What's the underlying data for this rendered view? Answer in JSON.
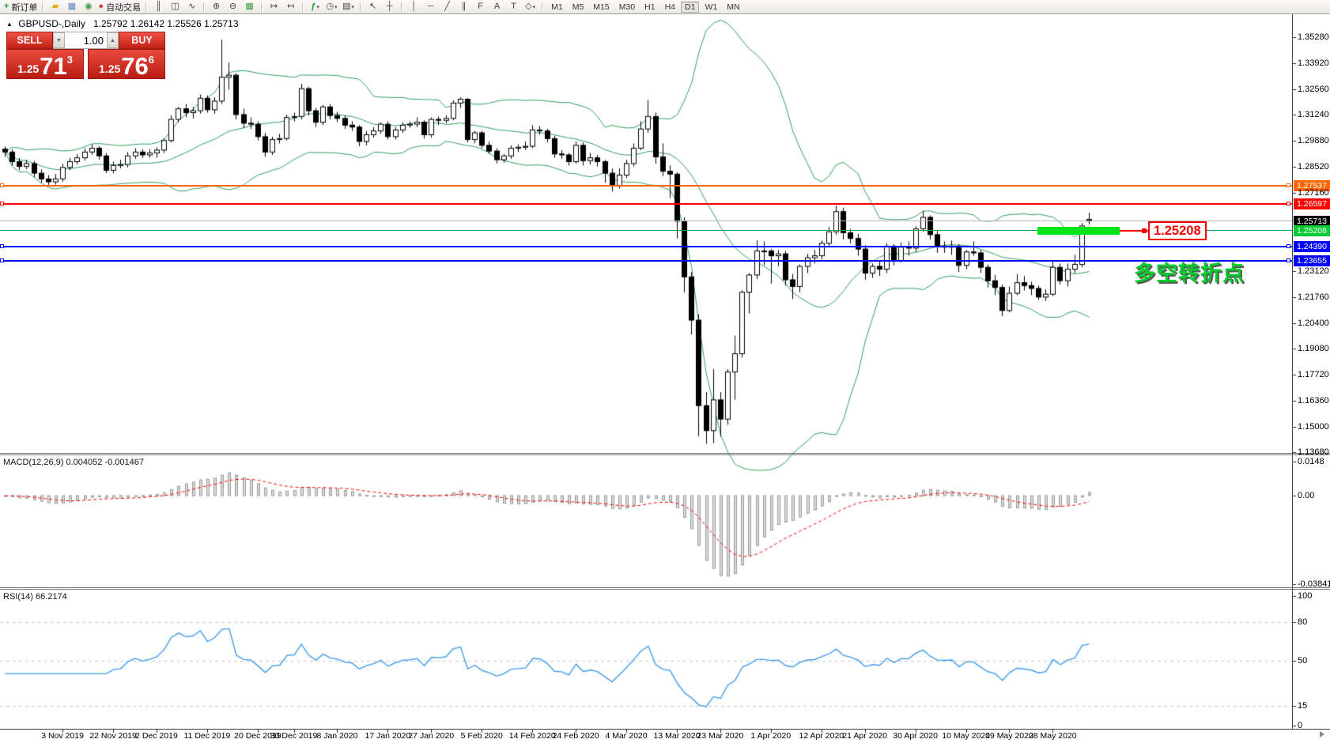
{
  "toolbar": {
    "buttons": [
      {
        "name": "new-order",
        "glyph": "+",
        "color": "#1d9f3c",
        "bold": true,
        "label": "新订单"
      },
      {
        "sep": true
      },
      {
        "name": "highlighter",
        "glyph": "▰",
        "color": "#e0a800"
      },
      {
        "name": "profiles",
        "glyph": "▦",
        "color": "#5a86c5"
      },
      {
        "name": "market-watch",
        "glyph": "◉",
        "color": "#3f9d47"
      },
      {
        "name": "autotrade",
        "glyph": "●",
        "color": "#cf4040",
        "label": "自动交易"
      },
      {
        "sep": true
      },
      {
        "name": "bar-chart",
        "glyph": "║"
      },
      {
        "name": "candlestick-chart",
        "glyph": "◫"
      },
      {
        "name": "line-chart",
        "glyph": "∿"
      },
      {
        "sep": true
      },
      {
        "name": "zoom-in",
        "glyph": "⊕"
      },
      {
        "name": "zoom-out",
        "glyph": "⊖"
      },
      {
        "name": "tile-windows",
        "glyph": "▦",
        "color": "#3f9d47"
      },
      {
        "sep": true
      },
      {
        "name": "auto-scroll",
        "glyph": "↦"
      },
      {
        "name": "chart-shift",
        "glyph": "↤"
      },
      {
        "sep": true
      },
      {
        "name": "indicators-add",
        "glyph": "ƒ",
        "color": "#1d9f3c",
        "bold": true,
        "caret": true
      },
      {
        "name": "periods",
        "glyph": "◷",
        "caret": true
      },
      {
        "name": "templates",
        "glyph": "▤",
        "caret": true
      },
      {
        "sep": true
      },
      {
        "name": "cursor",
        "glyph": "↖"
      },
      {
        "name": "crosshair",
        "glyph": "┼"
      },
      {
        "sep": true
      },
      {
        "name": "vertical-line",
        "glyph": "│"
      },
      {
        "name": "horizontal-line",
        "glyph": "─"
      },
      {
        "name": "trendline",
        "glyph": "╱"
      },
      {
        "name": "equidistant-channel",
        "glyph": "∥"
      },
      {
        "name": "fibonacci",
        "glyph": "F"
      },
      {
        "name": "text",
        "glyph": "A"
      },
      {
        "name": "text-label",
        "glyph": "T"
      },
      {
        "name": "arrows",
        "glyph": "◇",
        "caret": true
      },
      {
        "sep": true
      }
    ],
    "timeframes": [
      "M1",
      "M5",
      "M15",
      "M30",
      "H1",
      "H4",
      "D1",
      "W1",
      "MN"
    ],
    "active_timeframe": "D1"
  },
  "chart_header": {
    "symbol_period": "GBPUSD-,Daily",
    "ohlc": "1.25792 1.26142 1.25526 1.25713"
  },
  "one_click": {
    "sell_label": "SELL",
    "buy_label": "BUY",
    "volume": "1.00",
    "sell_small": "1.25",
    "sell_big": "71",
    "sell_sup": "3",
    "buy_small": "1.25",
    "buy_big": "76",
    "buy_sup": "6"
  },
  "price_axis": {
    "ticks": [
      "1.35280",
      "1.33920",
      "1.32560",
      "1.31240",
      "1.29880",
      "1.28520",
      "1.27160",
      "1.23120",
      "1.21760",
      "1.20400",
      "1.19080",
      "1.17720",
      "1.16360",
      "1.15000",
      "1.13680"
    ]
  },
  "levels": [
    {
      "name": "resistance-line-1",
      "price": "1.27537",
      "value": 1.27537,
      "color": "#ff6600",
      "thickness": 2,
      "handles": true
    },
    {
      "name": "resistance-line-2",
      "price": "1.26597",
      "value": 1.26597,
      "color": "#fe0000",
      "thickness": 2,
      "handles": true
    },
    {
      "name": "bid-price-line",
      "price": "1.25713",
      "value": 1.25713,
      "color": "#b8b8b8",
      "thickness": 1,
      "tag_bg": "#000000"
    },
    {
      "name": "pivot-line",
      "price": "1.25208",
      "value": 1.25208,
      "color": "#00a74a",
      "thickness": 1,
      "tag_bg": "#00cc33"
    },
    {
      "name": "support-line-1",
      "price": "1.24390",
      "value": 1.2439,
      "color": "#0000fe",
      "thickness": 2,
      "handles": true
    },
    {
      "name": "support-line-2",
      "price": "1.23655",
      "value": 1.23655,
      "color": "#0000fe",
      "thickness": 2,
      "handles": true
    }
  ],
  "annotations": {
    "highlight_bar": {
      "price": 1.25208,
      "color": "#00e619"
    },
    "callout": {
      "text": "1.25208",
      "color": "#f40000"
    },
    "cn_note": {
      "text": "多空转折点",
      "color": "#00cc2a"
    }
  },
  "macd_panel": {
    "label": "MACD(12,26,9) 0.004052 -0.001467",
    "axis_max": "0.0148",
    "axis_zero": "0.00",
    "axis_min": "-0.038415"
  },
  "rsi_panel": {
    "label": "RSI(14) 66.2174",
    "axis": [
      "100",
      "80",
      "50",
      "15",
      "0"
    ],
    "level_lines": [
      80,
      50,
      15
    ]
  },
  "date_axis": [
    {
      "label": "3 Nov 2019",
      "i": 8
    },
    {
      "label": "22 Nov 2019",
      "i": 15
    },
    {
      "label": "2 Dec 2019",
      "i": 21
    },
    {
      "label": "11 Dec 2019",
      "i": 28
    },
    {
      "label": "20 Dec 2019",
      "i": 35
    },
    {
      "label": "30 Dec 2019",
      "i": 40
    },
    {
      "label": "8 Jan 2020",
      "i": 46
    },
    {
      "label": "17 Jan 2020",
      "i": 53
    },
    {
      "label": "27 Jan 2020",
      "i": 59
    },
    {
      "label": "5 Feb 2020",
      "i": 66
    },
    {
      "label": "14 Feb 2020",
      "i": 73
    },
    {
      "label": "24 Feb 2020",
      "i": 79
    },
    {
      "label": "4 Mar 2020",
      "i": 86
    },
    {
      "label": "13 Mar 2020",
      "i": 93
    },
    {
      "label": "23 Mar 2020",
      "i": 99
    },
    {
      "label": "1 Apr 2020",
      "i": 106
    },
    {
      "label": "12 Apr 2020",
      "i": 113
    },
    {
      "label": "21 Apr 2020",
      "i": 119
    },
    {
      "label": "30 Apr 2020",
      "i": 126
    },
    {
      "label": "10 May 2020",
      "i": 133
    },
    {
      "label": "19 May 2020",
      "i": 139
    },
    {
      "label": "28 May 2020",
      "i": 145
    }
  ],
  "chart_data": {
    "type": "candlestick",
    "symbol": "GBPUSD-",
    "timeframe": "Daily",
    "ohlc_display": {
      "open": "1.25792",
      "high": "1.26142",
      "low": "1.25526",
      "close": "1.25713"
    },
    "visible_price_range": [
      1.1368,
      1.356
    ],
    "overlays": [
      {
        "name": "Bollinger Bands",
        "period": 20,
        "deviation": 2,
        "color": "#2e9e5b"
      }
    ],
    "indicators": [
      {
        "name": "MACD",
        "params": [
          12,
          26,
          9
        ],
        "current": [
          0.004052,
          -0.001467
        ],
        "range": [
          -0.038415,
          0.0148
        ]
      },
      {
        "name": "RSI",
        "params": [
          14
        ],
        "current": 66.2174,
        "levels": [
          15,
          50,
          80
        ],
        "range": [
          0,
          100
        ]
      }
    ],
    "horizontal_levels": [
      1.27537,
      1.26597,
      1.25713,
      1.25208,
      1.2439,
      1.23655
    ],
    "candles": [
      [
        1.2945,
        1.296,
        1.2905,
        1.293
      ],
      [
        1.293,
        1.2945,
        1.286,
        1.288
      ],
      [
        1.288,
        1.29,
        1.2835,
        1.2855
      ],
      [
        1.2855,
        1.289,
        1.284,
        1.287
      ],
      [
        1.287,
        1.2885,
        1.28,
        1.282
      ],
      [
        1.282,
        1.284,
        1.277,
        1.279
      ],
      [
        1.279,
        1.281,
        1.275,
        1.2775
      ],
      [
        1.2775,
        1.2815,
        1.276,
        1.279
      ],
      [
        1.279,
        1.287,
        1.2775,
        1.285
      ],
      [
        1.285,
        1.29,
        1.2835,
        1.288
      ],
      [
        1.288,
        1.292,
        1.2865,
        1.29
      ],
      [
        1.29,
        1.295,
        1.2885,
        1.293
      ],
      [
        1.293,
        1.297,
        1.2915,
        1.295
      ],
      [
        1.295,
        1.296,
        1.289,
        1.291
      ],
      [
        1.291,
        1.2925,
        1.282,
        1.2835
      ],
      [
        1.2835,
        1.288,
        1.282,
        1.286
      ],
      [
        1.286,
        1.289,
        1.2845,
        1.2865
      ],
      [
        1.2865,
        1.293,
        1.285,
        1.291
      ],
      [
        1.291,
        1.295,
        1.2895,
        1.293
      ],
      [
        1.293,
        1.2945,
        1.29,
        1.2915
      ],
      [
        1.2915,
        1.2945,
        1.29,
        1.2925
      ],
      [
        1.2925,
        1.2955,
        1.29,
        1.294
      ],
      [
        1.294,
        1.3,
        1.2925,
        1.299
      ],
      [
        1.299,
        1.312,
        1.298,
        1.31
      ],
      [
        1.31,
        1.3165,
        1.3085,
        1.3155
      ],
      [
        1.3155,
        1.318,
        1.311,
        1.3135
      ],
      [
        1.3135,
        1.3165,
        1.3105,
        1.3145
      ],
      [
        1.3145,
        1.323,
        1.313,
        1.321
      ],
      [
        1.321,
        1.3225,
        1.3135,
        1.315
      ],
      [
        1.315,
        1.3215,
        1.313,
        1.3195
      ],
      [
        1.3195,
        1.3515,
        1.318,
        1.332
      ],
      [
        1.332,
        1.3395,
        1.3255,
        1.333
      ],
      [
        1.333,
        1.334,
        1.31,
        1.3125
      ],
      [
        1.3125,
        1.3155,
        1.3055,
        1.308
      ],
      [
        1.308,
        1.311,
        1.305,
        1.3075
      ],
      [
        1.3075,
        1.309,
        1.299,
        1.301
      ],
      [
        1.301,
        1.303,
        1.2905,
        1.293
      ],
      [
        1.293,
        1.301,
        1.2915,
        1.2995
      ],
      [
        1.2995,
        1.3025,
        1.2975,
        1.3
      ],
      [
        1.3,
        1.3125,
        1.299,
        1.311
      ],
      [
        1.311,
        1.3135,
        1.309,
        1.3115
      ],
      [
        1.3115,
        1.3285,
        1.31,
        1.326
      ],
      [
        1.326,
        1.327,
        1.312,
        1.3145
      ],
      [
        1.3145,
        1.316,
        1.306,
        1.3085
      ],
      [
        1.3085,
        1.3175,
        1.307,
        1.3165
      ],
      [
        1.3165,
        1.318,
        1.31,
        1.312
      ],
      [
        1.312,
        1.314,
        1.3085,
        1.3105
      ],
      [
        1.3105,
        1.312,
        1.305,
        1.307
      ],
      [
        1.307,
        1.309,
        1.304,
        1.306
      ],
      [
        1.306,
        1.307,
        1.296,
        1.2985
      ],
      [
        1.2985,
        1.304,
        1.2965,
        1.302
      ],
      [
        1.302,
        1.306,
        1.3005,
        1.304
      ],
      [
        1.304,
        1.3085,
        1.3025,
        1.3075
      ],
      [
        1.3075,
        1.309,
        1.2995,
        1.301
      ],
      [
        1.301,
        1.306,
        1.2995,
        1.3045
      ],
      [
        1.3045,
        1.3085,
        1.303,
        1.307
      ],
      [
        1.307,
        1.309,
        1.3055,
        1.3075
      ],
      [
        1.3075,
        1.311,
        1.306,
        1.3085
      ],
      [
        1.3085,
        1.3095,
        1.3,
        1.302
      ],
      [
        1.302,
        1.311,
        1.3005,
        1.31
      ],
      [
        1.31,
        1.3115,
        1.307,
        1.3095
      ],
      [
        1.3095,
        1.312,
        1.308,
        1.3105
      ],
      [
        1.3105,
        1.32,
        1.3095,
        1.3185
      ],
      [
        1.3185,
        1.3215,
        1.316,
        1.3205
      ],
      [
        1.3205,
        1.321,
        1.298,
        1.2995
      ],
      [
        1.2995,
        1.304,
        1.2975,
        1.303
      ],
      [
        1.303,
        1.304,
        1.295,
        1.2965
      ],
      [
        1.2965,
        1.2985,
        1.292,
        1.2935
      ],
      [
        1.2935,
        1.295,
        1.287,
        1.289
      ],
      [
        1.289,
        1.292,
        1.2875,
        1.291
      ],
      [
        1.291,
        1.2965,
        1.2895,
        1.295
      ],
      [
        1.295,
        1.297,
        1.293,
        1.2955
      ],
      [
        1.2955,
        1.2985,
        1.294,
        1.296
      ],
      [
        1.296,
        1.307,
        1.295,
        1.3045
      ],
      [
        1.3045,
        1.3065,
        1.302,
        1.304
      ],
      [
        1.304,
        1.305,
        1.298,
        1.3
      ],
      [
        1.3,
        1.3015,
        1.29,
        1.292
      ],
      [
        1.292,
        1.294,
        1.2895,
        1.2915
      ],
      [
        1.2915,
        1.2925,
        1.286,
        1.288
      ],
      [
        1.288,
        1.2985,
        1.287,
        1.2965
      ],
      [
        1.2965,
        1.298,
        1.286,
        1.2885
      ],
      [
        1.2885,
        1.2925,
        1.2865,
        1.29
      ],
      [
        1.29,
        1.2915,
        1.2855,
        1.288
      ],
      [
        1.288,
        1.289,
        1.277,
        1.282
      ],
      [
        1.282,
        1.2845,
        1.2725,
        1.2755
      ],
      [
        1.2755,
        1.2845,
        1.274,
        1.281
      ],
      [
        1.281,
        1.289,
        1.2795,
        1.287
      ],
      [
        1.287,
        1.2975,
        1.2855,
        1.295
      ],
      [
        1.295,
        1.309,
        1.294,
        1.305
      ],
      [
        1.305,
        1.32,
        1.303,
        1.3115
      ],
      [
        1.3115,
        1.3135,
        1.287,
        1.2905
      ],
      [
        1.2905,
        1.2975,
        1.2805,
        1.283
      ],
      [
        1.283,
        1.286,
        1.269,
        1.2815
      ],
      [
        1.2815,
        1.2825,
        1.248,
        1.257
      ],
      [
        1.257,
        1.259,
        1.22,
        1.228
      ],
      [
        1.228,
        1.2305,
        1.198,
        1.2055
      ],
      [
        1.2055,
        1.2085,
        1.145,
        1.161
      ],
      [
        1.161,
        1.168,
        1.1412,
        1.148
      ],
      [
        1.148,
        1.18,
        1.1415,
        1.164
      ],
      [
        1.164,
        1.168,
        1.145,
        1.154
      ],
      [
        1.154,
        1.18,
        1.151,
        1.1785
      ],
      [
        1.1785,
        1.1975,
        1.164,
        1.188
      ],
      [
        1.188,
        1.221,
        1.186,
        1.22
      ],
      [
        1.22,
        1.23,
        1.209,
        1.229
      ],
      [
        1.229,
        1.247,
        1.227,
        1.2415
      ],
      [
        1.2415,
        1.2465,
        1.234,
        1.2415
      ],
      [
        1.2415,
        1.2425,
        1.2245,
        1.239
      ],
      [
        1.239,
        1.242,
        1.2335,
        1.24
      ],
      [
        1.24,
        1.2415,
        1.2235,
        1.2265
      ],
      [
        1.2265,
        1.2295,
        1.2165,
        1.223
      ],
      [
        1.223,
        1.2345,
        1.22,
        1.2335
      ],
      [
        1.2335,
        1.24,
        1.23,
        1.238
      ],
      [
        1.238,
        1.242,
        1.235,
        1.239
      ],
      [
        1.239,
        1.247,
        1.237,
        1.2455
      ],
      [
        1.2455,
        1.254,
        1.244,
        1.2515
      ],
      [
        1.2515,
        1.265,
        1.25,
        1.262
      ],
      [
        1.262,
        1.264,
        1.2475,
        1.251
      ],
      [
        1.251,
        1.253,
        1.2455,
        1.248
      ],
      [
        1.248,
        1.2505,
        1.239,
        1.2425
      ],
      [
        1.2425,
        1.2445,
        1.2265,
        1.23
      ],
      [
        1.23,
        1.235,
        1.2275,
        1.2335
      ],
      [
        1.2335,
        1.2365,
        1.2285,
        1.232
      ],
      [
        1.232,
        1.2455,
        1.23,
        1.244
      ],
      [
        1.244,
        1.245,
        1.234,
        1.2365
      ],
      [
        1.2365,
        1.246,
        1.2355,
        1.2435
      ],
      [
        1.2435,
        1.2465,
        1.239,
        1.243
      ],
      [
        1.243,
        1.2545,
        1.241,
        1.253
      ],
      [
        1.253,
        1.2625,
        1.2515,
        1.259
      ],
      [
        1.259,
        1.26,
        1.2475,
        1.25
      ],
      [
        1.25,
        1.252,
        1.2405,
        1.244
      ],
      [
        1.244,
        1.2465,
        1.2405,
        1.2435
      ],
      [
        1.2435,
        1.247,
        1.2395,
        1.244
      ],
      [
        1.244,
        1.245,
        1.2305,
        1.234
      ],
      [
        1.234,
        1.242,
        1.232,
        1.241
      ],
      [
        1.241,
        1.2465,
        1.239,
        1.2405
      ],
      [
        1.2405,
        1.242,
        1.23,
        1.233
      ],
      [
        1.233,
        1.2345,
        1.2225,
        1.226
      ],
      [
        1.226,
        1.229,
        1.2185,
        1.2225
      ],
      [
        1.2225,
        1.224,
        1.2075,
        1.2105
      ],
      [
        1.2105,
        1.223,
        1.2095,
        1.2195
      ],
      [
        1.2195,
        1.2295,
        1.2185,
        1.225
      ],
      [
        1.225,
        1.2285,
        1.221,
        1.2235
      ],
      [
        1.2235,
        1.2255,
        1.2185,
        1.222
      ],
      [
        1.222,
        1.2235,
        1.216,
        1.2175
      ],
      [
        1.2175,
        1.2215,
        1.2155,
        1.219
      ],
      [
        1.219,
        1.2365,
        1.218,
        1.233
      ],
      [
        1.233,
        1.235,
        1.224,
        1.226
      ],
      [
        1.226,
        1.235,
        1.223,
        1.232
      ],
      [
        1.232,
        1.2395,
        1.23,
        1.2345
      ],
      [
        1.2345,
        1.256,
        1.233,
        1.2545
      ],
      [
        1.2579,
        1.2614,
        1.2553,
        1.2571
      ]
    ]
  }
}
